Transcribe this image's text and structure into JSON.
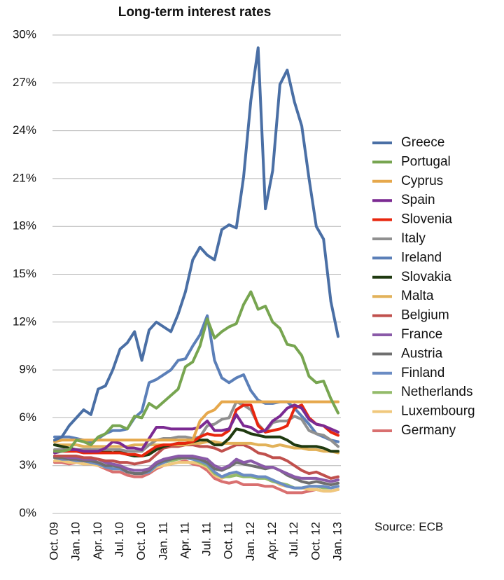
{
  "chart_data": {
    "type": "line",
    "title": "Long-term interest rates",
    "source": "Source: ECB",
    "categories": [
      "Oct. 09",
      null,
      null,
      "Jan. 10",
      null,
      null,
      "Apr. 10",
      null,
      null,
      "Jul. 10",
      null,
      null,
      "Oct. 10",
      null,
      null,
      "Jan. 11",
      null,
      null,
      "Apr. 11",
      null,
      null,
      "Jul. 11",
      null,
      null,
      "Oct. 11",
      null,
      null,
      "Jan. 12",
      null,
      null,
      "Apr. 12",
      null,
      null,
      "Jul. 12",
      null,
      null,
      "Oct. 12",
      null,
      null,
      "Jan. 13"
    ],
    "ylim": [
      0,
      30
    ],
    "yticks": [
      {
        "value": 0,
        "label": "0%"
      },
      {
        "value": 3,
        "label": "3%"
      },
      {
        "value": 6,
        "label": "6%"
      },
      {
        "value": 9,
        "label": "9%"
      },
      {
        "value": 12,
        "label": "12%"
      },
      {
        "value": 15,
        "label": "15%"
      },
      {
        "value": 18,
        "label": "18%"
      },
      {
        "value": 21,
        "label": "21%"
      },
      {
        "value": 24,
        "label": "24%"
      },
      {
        "value": 27,
        "label": "27%"
      },
      {
        "value": 30,
        "label": "30%"
      }
    ],
    "grid": true,
    "legend": "right",
    "series": [
      {
        "name": "Greece",
        "color": "#4a6fa5",
        "values": [
          4.6,
          4.8,
          5.5,
          6.0,
          6.5,
          6.2,
          7.8,
          8.0,
          9.0,
          10.3,
          10.7,
          11.4,
          9.6,
          11.5,
          12.0,
          11.7,
          11.4,
          12.5,
          13.9,
          15.9,
          16.7,
          16.2,
          15.9,
          17.8,
          18.1,
          17.9,
          21.1,
          25.9,
          29.2,
          19.1,
          21.5,
          26.9,
          27.8,
          25.8,
          24.3,
          21.0,
          18.0,
          17.2,
          13.3,
          11.1
        ]
      },
      {
        "name": "Portugal",
        "color": "#77a550",
        "values": [
          3.9,
          3.9,
          4.0,
          4.6,
          4.5,
          4.3,
          4.8,
          5.0,
          5.5,
          5.5,
          5.3,
          6.1,
          6.0,
          6.9,
          6.6,
          7.0,
          7.4,
          7.8,
          9.2,
          9.5,
          10.5,
          12.2,
          11.0,
          11.4,
          11.7,
          11.9,
          13.1,
          13.9,
          12.8,
          13.0,
          12.0,
          11.6,
          10.6,
          10.5,
          9.9,
          8.6,
          8.2,
          8.3,
          7.2,
          6.3
        ]
      },
      {
        "name": "Cyprus",
        "color": "#e6a84c",
        "values": [
          4.5,
          4.6,
          4.6,
          4.6,
          4.6,
          4.6,
          4.6,
          4.6,
          4.6,
          4.6,
          4.6,
          4.6,
          4.6,
          4.6,
          4.6,
          4.6,
          4.6,
          4.6,
          4.6,
          4.6,
          5.8,
          6.3,
          6.5,
          7.0,
          7.0,
          7.0,
          7.0,
          7.0,
          7.0,
          7.0,
          7.0,
          7.0,
          7.0,
          7.0,
          7.0,
          7.0,
          7.0,
          7.0,
          7.0,
          7.0
        ]
      },
      {
        "name": "Spain",
        "color": "#7b2a92",
        "values": [
          3.8,
          3.9,
          4.0,
          4.0,
          3.9,
          3.9,
          3.9,
          4.1,
          4.5,
          4.4,
          4.1,
          4.1,
          4.0,
          4.7,
          5.4,
          5.4,
          5.3,
          5.3,
          5.3,
          5.3,
          5.4,
          5.8,
          5.2,
          5.2,
          5.3,
          6.2,
          5.5,
          5.4,
          5.1,
          5.2,
          5.8,
          6.1,
          6.6,
          6.8,
          6.6,
          5.9,
          5.6,
          5.5,
          5.3,
          5.1
        ]
      },
      {
        "name": "Slovenia",
        "color": "#e8260e",
        "values": [
          3.9,
          3.9,
          3.9,
          3.9,
          3.8,
          3.8,
          3.8,
          3.8,
          3.8,
          3.8,
          3.7,
          3.7,
          3.6,
          3.9,
          4.2,
          4.3,
          4.3,
          4.4,
          4.4,
          4.5,
          4.8,
          5.0,
          4.9,
          4.9,
          5.2,
          6.5,
          6.8,
          6.8,
          5.5,
          5.1,
          5.2,
          5.3,
          5.5,
          6.6,
          6.8,
          6.0,
          5.6,
          5.5,
          5.1,
          4.9
        ]
      },
      {
        "name": "Italy",
        "color": "#909090",
        "values": [
          4.0,
          4.0,
          4.0,
          4.0,
          4.0,
          4.0,
          4.0,
          4.0,
          4.0,
          4.0,
          3.9,
          3.9,
          3.9,
          4.3,
          4.6,
          4.7,
          4.7,
          4.8,
          4.8,
          4.7,
          4.8,
          5.5,
          5.6,
          5.9,
          6.0,
          7.0,
          6.8,
          6.5,
          5.6,
          5.1,
          5.7,
          5.8,
          5.8,
          6.1,
          5.9,
          5.2,
          5.0,
          4.9,
          4.6,
          4.2
        ]
      },
      {
        "name": "Ireland",
        "color": "#5b7fb8",
        "values": [
          4.8,
          4.8,
          4.8,
          4.7,
          4.6,
          4.5,
          4.7,
          5.0,
          5.2,
          5.2,
          5.3,
          6.0,
          6.4,
          8.2,
          8.4,
          8.7,
          9.0,
          9.6,
          9.7,
          10.5,
          11.2,
          12.4,
          9.6,
          8.5,
          8.2,
          8.5,
          8.7,
          7.7,
          7.1,
          6.9,
          6.9,
          7.0,
          7.0,
          6.6,
          6.1,
          5.6,
          5.0,
          4.8,
          4.6,
          4.5
        ]
      },
      {
        "name": "Slovakia",
        "color": "#1f3a10",
        "values": [
          4.3,
          4.2,
          4.1,
          4.0,
          4.0,
          4.0,
          3.9,
          3.9,
          3.8,
          3.9,
          3.7,
          3.6,
          3.6,
          3.7,
          4.0,
          4.2,
          4.3,
          4.4,
          4.4,
          4.5,
          4.6,
          4.6,
          4.3,
          4.3,
          4.7,
          5.3,
          5.2,
          5.0,
          4.9,
          4.8,
          4.8,
          4.8,
          4.6,
          4.3,
          4.2,
          4.2,
          4.2,
          4.1,
          3.9,
          3.9
        ]
      },
      {
        "name": "Malta",
        "color": "#e2b25a",
        "values": [
          4.3,
          4.3,
          4.3,
          4.3,
          4.2,
          4.2,
          4.2,
          4.2,
          4.2,
          4.2,
          4.2,
          4.3,
          4.3,
          4.3,
          4.3,
          4.3,
          4.3,
          4.3,
          4.3,
          4.4,
          4.4,
          4.5,
          4.5,
          4.4,
          4.4,
          4.4,
          4.4,
          4.4,
          4.3,
          4.3,
          4.2,
          4.3,
          4.2,
          4.1,
          4.1,
          4.0,
          4.0,
          3.9,
          3.9,
          3.8
        ]
      },
      {
        "name": "Belgium",
        "color": "#c0504d",
        "values": [
          3.6,
          3.6,
          3.6,
          3.6,
          3.5,
          3.5,
          3.4,
          3.3,
          3.3,
          3.2,
          3.2,
          3.1,
          3.2,
          3.3,
          3.7,
          4.1,
          4.2,
          4.2,
          4.3,
          4.3,
          4.2,
          4.2,
          4.1,
          3.9,
          4.1,
          4.3,
          4.3,
          4.1,
          3.8,
          3.7,
          3.5,
          3.5,
          3.3,
          3.0,
          2.7,
          2.5,
          2.6,
          2.4,
          2.2,
          2.3
        ]
      },
      {
        "name": "France",
        "color": "#8a5aa8",
        "values": [
          3.6,
          3.6,
          3.5,
          3.5,
          3.4,
          3.4,
          3.4,
          3.2,
          3.1,
          3.0,
          2.8,
          2.7,
          2.7,
          2.8,
          3.2,
          3.4,
          3.5,
          3.6,
          3.6,
          3.6,
          3.5,
          3.4,
          3.0,
          2.8,
          3.0,
          3.4,
          3.2,
          3.3,
          3.1,
          2.9,
          2.9,
          2.7,
          2.5,
          2.3,
          2.2,
          2.2,
          2.2,
          2.1,
          2.0,
          2.1
        ]
      },
      {
        "name": "Austria",
        "color": "#6f6f6f",
        "values": [
          3.5,
          3.5,
          3.4,
          3.4,
          3.3,
          3.3,
          3.2,
          3.0,
          3.0,
          2.9,
          2.6,
          2.5,
          2.5,
          2.7,
          3.1,
          3.3,
          3.4,
          3.5,
          3.5,
          3.5,
          3.4,
          3.2,
          2.8,
          2.7,
          2.9,
          3.2,
          3.1,
          3.0,
          2.9,
          2.8,
          2.9,
          2.7,
          2.4,
          2.2,
          2.0,
          1.9,
          2.0,
          1.9,
          1.8,
          1.9
        ]
      },
      {
        "name": "Finland",
        "color": "#6a8cc4",
        "values": [
          3.5,
          3.4,
          3.4,
          3.3,
          3.3,
          3.2,
          3.1,
          2.9,
          2.8,
          2.8,
          2.6,
          2.5,
          2.5,
          2.6,
          3.0,
          3.2,
          3.4,
          3.5,
          3.5,
          3.4,
          3.3,
          3.1,
          2.6,
          2.3,
          2.5,
          2.6,
          2.4,
          2.4,
          2.3,
          2.3,
          2.1,
          1.9,
          1.7,
          1.6,
          1.6,
          1.7,
          1.7,
          1.7,
          1.6,
          1.7
        ]
      },
      {
        "name": "Netherlands",
        "color": "#93bb6a",
        "values": [
          3.5,
          3.4,
          3.4,
          3.4,
          3.3,
          3.2,
          3.1,
          3.0,
          2.8,
          2.8,
          2.6,
          2.5,
          2.5,
          2.6,
          3.0,
          3.2,
          3.3,
          3.4,
          3.5,
          3.4,
          3.2,
          3.0,
          2.5,
          2.3,
          2.3,
          2.4,
          2.3,
          2.3,
          2.2,
          2.2,
          2.0,
          1.9,
          1.8,
          1.6,
          1.6,
          1.7,
          1.7,
          1.6,
          1.6,
          1.7
        ]
      },
      {
        "name": "Luxembourg",
        "color": "#f0c87c",
        "values": [
          3.3,
          3.3,
          3.2,
          3.2,
          3.1,
          3.1,
          3.0,
          2.9,
          2.8,
          2.8,
          2.6,
          2.5,
          2.5,
          2.6,
          2.9,
          3.0,
          3.1,
          3.2,
          3.2,
          3.2,
          3.1,
          2.9,
          2.4,
          2.2,
          2.4,
          2.5,
          2.4,
          2.4,
          2.2,
          2.3,
          2.1,
          1.8,
          1.7,
          1.6,
          1.6,
          1.5,
          1.5,
          1.4,
          1.4,
          1.5
        ]
      },
      {
        "name": "Germany",
        "color": "#d97070",
        "values": [
          3.2,
          3.2,
          3.1,
          3.2,
          3.1,
          3.1,
          3.0,
          2.8,
          2.6,
          2.6,
          2.4,
          2.3,
          2.3,
          2.5,
          2.8,
          3.0,
          3.1,
          3.2,
          3.3,
          3.1,
          3.0,
          2.7,
          2.2,
          2.0,
          1.9,
          2.0,
          1.8,
          1.8,
          1.8,
          1.7,
          1.7,
          1.5,
          1.3,
          1.3,
          1.3,
          1.4,
          1.5,
          1.4,
          1.4,
          1.5
        ]
      }
    ]
  }
}
